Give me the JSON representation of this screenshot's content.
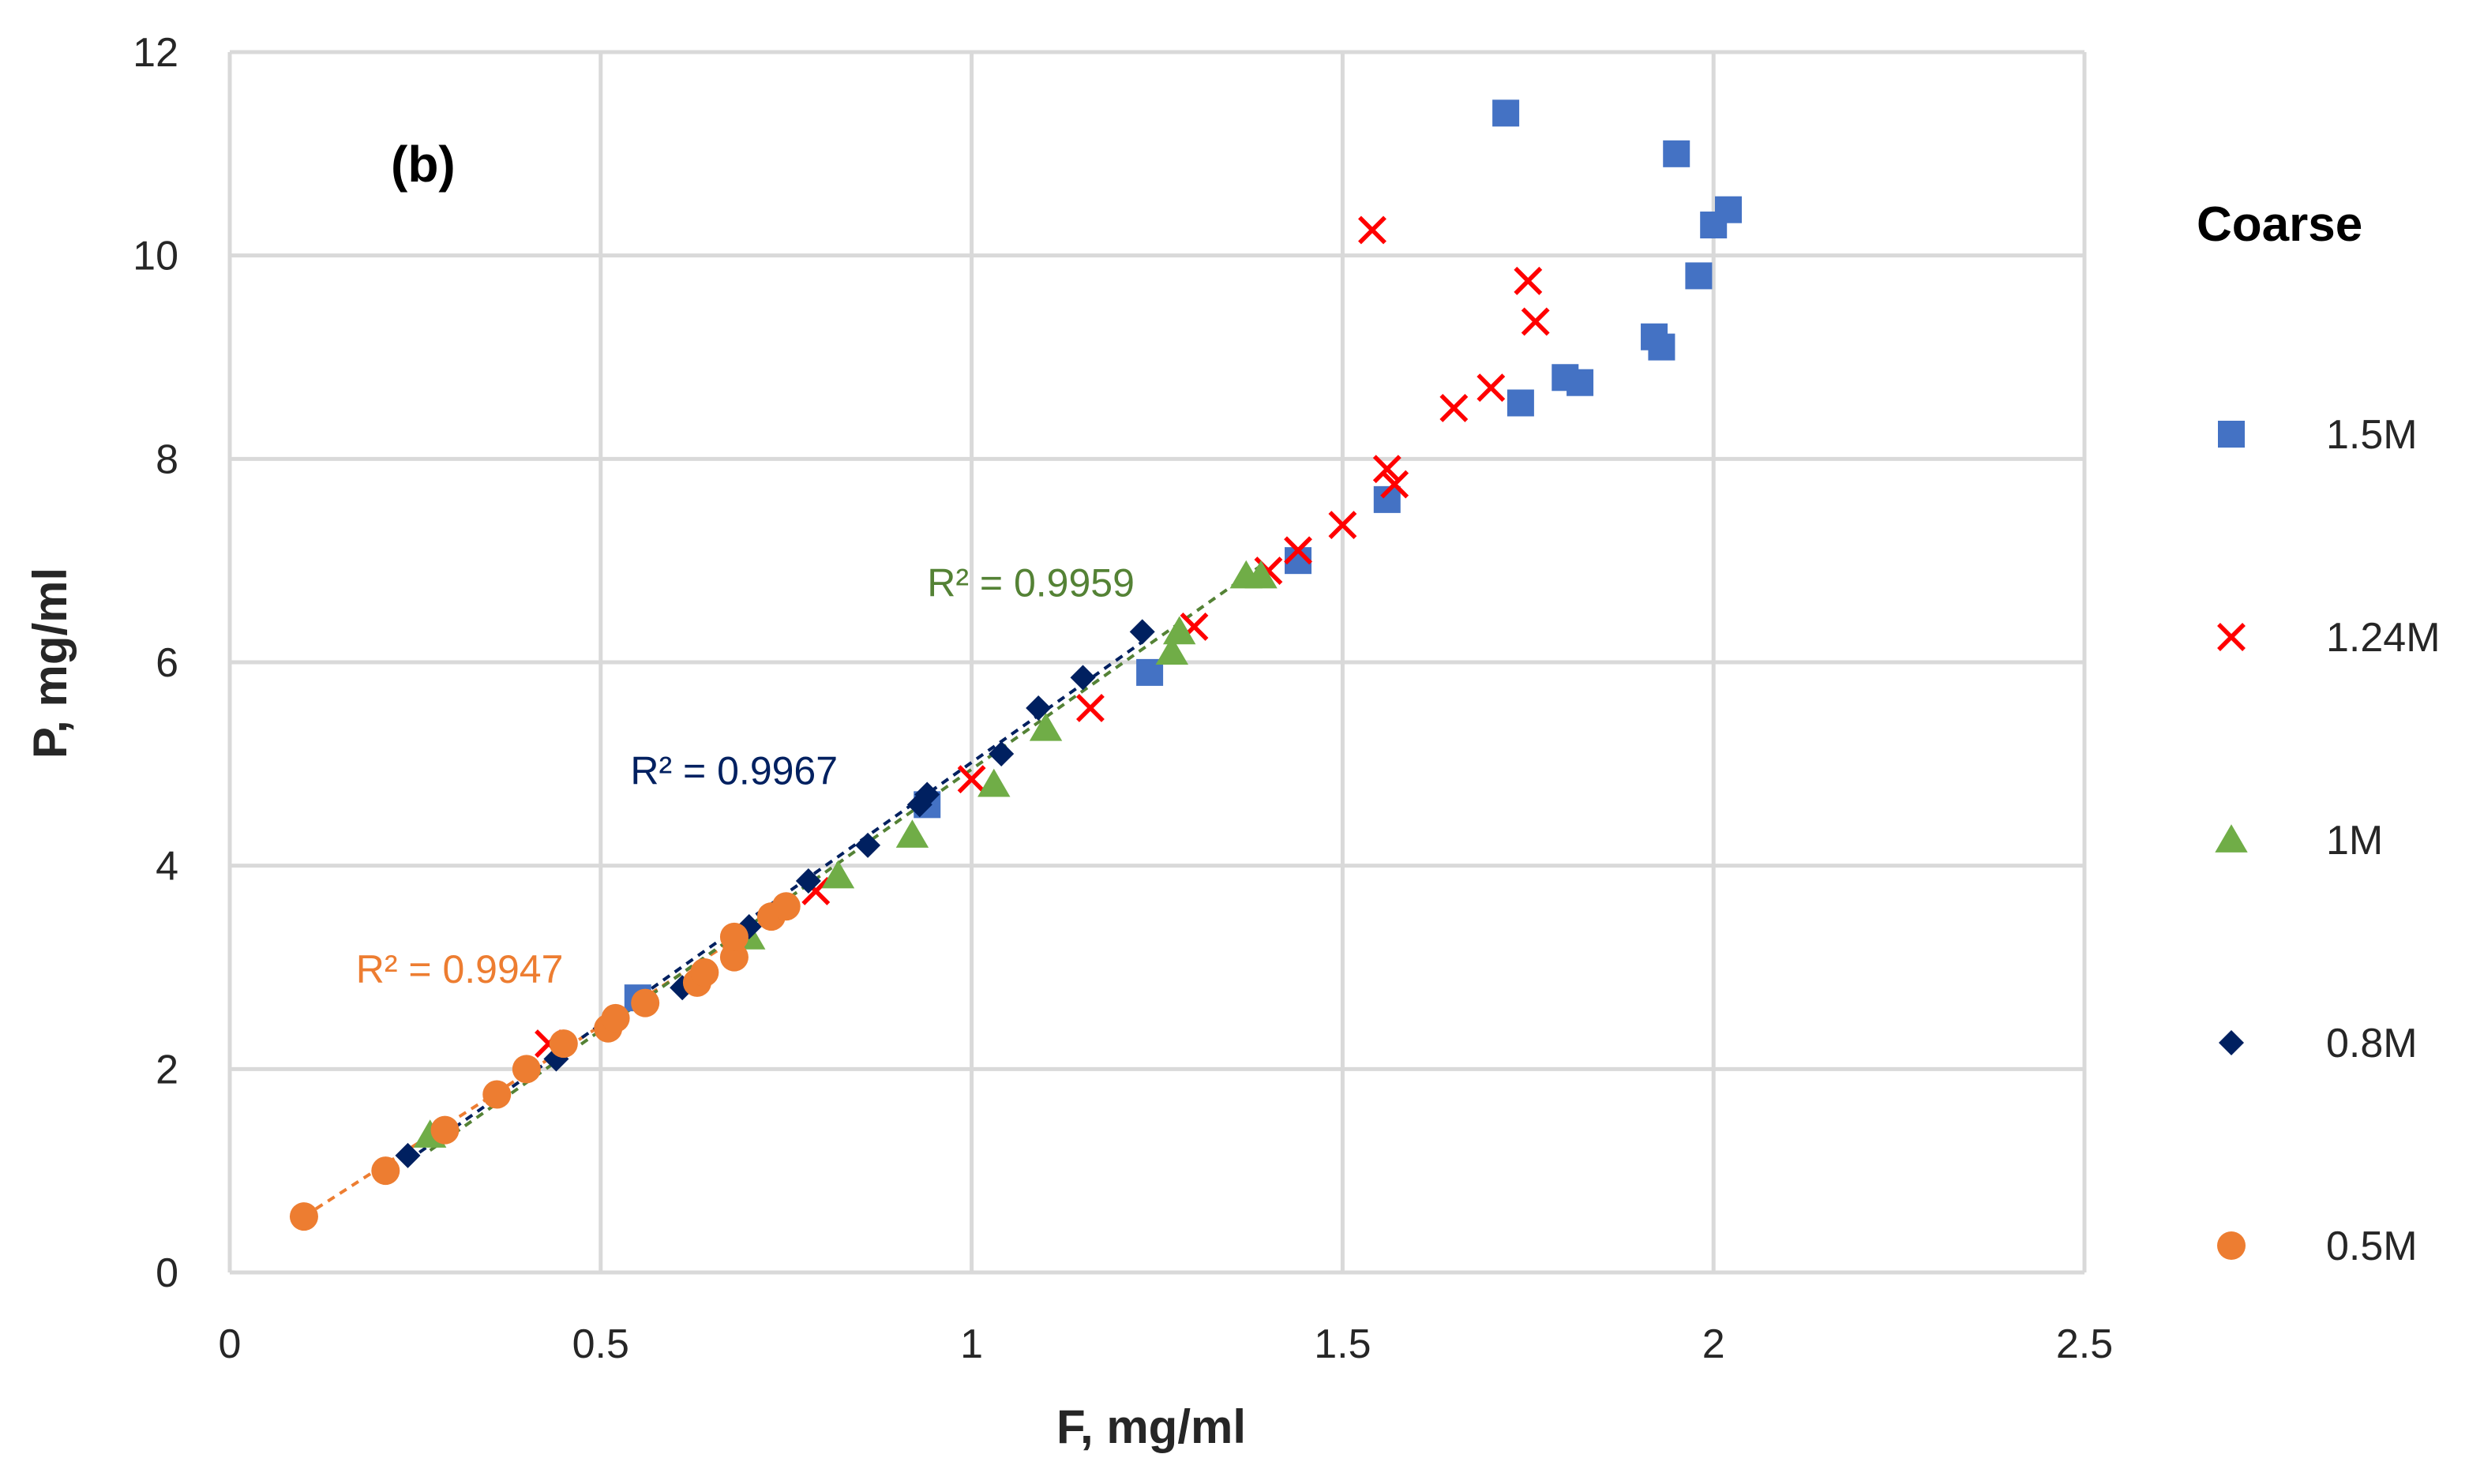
{
  "chart_data": {
    "type": "scatter",
    "panel_label": "(b)",
    "xlabel": "F, mg/ml",
    "ylabel": "P, mg/ml",
    "xlim": [
      0,
      2.5
    ],
    "ylim": [
      0,
      12
    ],
    "xticks": [
      0,
      0.5,
      1,
      1.5,
      2,
      2.5
    ],
    "yticks": [
      0,
      2,
      4,
      6,
      8,
      10,
      12
    ],
    "xtick_labels": [
      "0",
      "0.5",
      "1",
      "1.5",
      "2",
      "2.5"
    ],
    "ytick_labels": [
      "0",
      "2",
      "4",
      "6",
      "8",
      "10",
      "12"
    ],
    "grid": true,
    "legend": {
      "title": "Coarse",
      "position": "right"
    },
    "series": [
      {
        "name": "1.5M",
        "marker": "square",
        "color": "#4472C4",
        "x": [
          1.72,
          1.95,
          2.02,
          2.0,
          1.98,
          1.92,
          1.93,
          1.74,
          1.8,
          1.82,
          1.56,
          1.44,
          1.24,
          0.94,
          0.55
        ],
        "y": [
          11.4,
          11.0,
          10.45,
          10.3,
          9.8,
          9.2,
          9.1,
          8.55,
          8.8,
          8.75,
          7.6,
          7.0,
          5.9,
          4.6,
          2.7
        ]
      },
      {
        "name": "1.24M",
        "marker": "x",
        "color": "#FF0000",
        "x": [
          1.54,
          1.75,
          1.76,
          1.7,
          1.65,
          1.56,
          1.57,
          1.5,
          1.44,
          1.4,
          1.3,
          1.16,
          1.0,
          0.79,
          0.43
        ],
        "y": [
          10.25,
          9.75,
          9.35,
          8.7,
          8.5,
          7.9,
          7.75,
          7.35,
          7.1,
          6.9,
          6.35,
          5.55,
          4.85,
          3.75,
          2.25
        ]
      },
      {
        "name": "1M",
        "marker": "triangle",
        "color": "#70AD47",
        "x": [
          1.37,
          1.39,
          1.28,
          1.27,
          1.1,
          1.03,
          0.92,
          0.82,
          0.7,
          0.27
        ],
        "y": [
          6.85,
          6.85,
          6.3,
          6.1,
          5.35,
          4.8,
          4.3,
          3.9,
          3.3,
          1.35
        ]
      },
      {
        "name": "0.8M",
        "marker": "diamond",
        "color": "#002060",
        "x": [
          1.23,
          1.15,
          1.09,
          1.04,
          0.94,
          0.93,
          0.86,
          0.78,
          0.7,
          0.61,
          0.44,
          0.24
        ],
        "y": [
          6.3,
          5.85,
          5.55,
          5.1,
          4.7,
          4.6,
          4.2,
          3.85,
          3.4,
          2.8,
          2.1,
          1.15
        ]
      },
      {
        "name": "0.5M",
        "marker": "circle",
        "color": "#ED7D31",
        "x": [
          0.1,
          0.21,
          0.29,
          0.36,
          0.4,
          0.45,
          0.51,
          0.52,
          0.56,
          0.63,
          0.64,
          0.68,
          0.68,
          0.73,
          0.75
        ],
        "y": [
          0.55,
          1.0,
          1.4,
          1.75,
          2.0,
          2.25,
          2.4,
          2.5,
          2.65,
          2.85,
          2.95,
          3.1,
          3.3,
          3.5,
          3.6
        ]
      }
    ],
    "trendlines": [
      {
        "series": "0.5M",
        "r2_label": "R² = 0.9947",
        "color": "#ED7D31",
        "x": [
          0.1,
          0.75
        ],
        "y": [
          0.55,
          3.6
        ]
      },
      {
        "series": "0.8M",
        "r2_label": "R² = 0.9967",
        "color": "#002060",
        "x": [
          0.24,
          1.23
        ],
        "y": [
          1.1,
          6.2
        ]
      },
      {
        "series": "1M",
        "r2_label": "R² = 0.9959",
        "color": "#548235",
        "x": [
          0.27,
          1.39
        ],
        "y": [
          1.2,
          6.95
        ]
      }
    ],
    "annotations": [
      {
        "text": "R² = 0.9959",
        "x": 0.94,
        "y": 6.65,
        "color": "#548235"
      },
      {
        "text": "R² = 0.9967",
        "x": 0.54,
        "y": 4.8,
        "color": "#002060"
      },
      {
        "text": "R² = 0.9947",
        "x": 0.17,
        "y": 2.85,
        "color": "#ED7D31"
      }
    ]
  }
}
